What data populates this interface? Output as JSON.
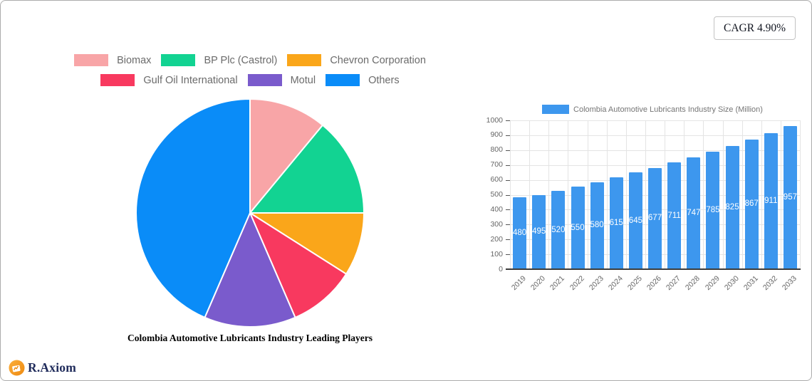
{
  "ui": {
    "cagr_badge": "CAGR 4.90%",
    "brand": {
      "name": "R.Axiom"
    }
  },
  "theme": {
    "accent_orange": "#F0921A",
    "brand_navy": "#1F2B5B",
    "legend_text": "#6B6B6B",
    "axis_text": "#666666",
    "grid_line": "#E4E4E4",
    "axis_line": "#3C3C3C"
  },
  "chart_data": [
    {
      "type": "pie",
      "title": "Colombia Automotive Lubricants Industry Leading Players",
      "labels": [
        "Biomax",
        "BP Plc (Castrol)",
        "Chevron Corporation",
        "Gulf Oil International",
        "Motul",
        "Others"
      ],
      "values_pct": [
        11,
        14,
        9,
        9.5,
        13,
        43.5
      ],
      "colors": [
        "#F8A5A7",
        "#12D392",
        "#FAA61A",
        "#F8395F",
        "#7A5BCC",
        "#0A8CF8"
      ],
      "start_angle_deg": 0,
      "clockwise": true,
      "legend_position": "top",
      "legend_rows": 2
    },
    {
      "type": "bar",
      "categories": [
        "2019",
        "2020",
        "2021",
        "2022",
        "2023",
        "2024",
        "2025",
        "2026",
        "2027",
        "2028",
        "2029",
        "2030",
        "2031",
        "2032",
        "2033"
      ],
      "series": [
        {
          "name": "Colombia Automotive Lubricants Industry Size (Million)",
          "values": [
            480,
            495,
            520,
            550,
            580,
            615,
            645,
            677,
            711,
            747,
            785,
            825,
            867,
            911,
            957
          ]
        }
      ],
      "ylim": [
        0,
        1000
      ],
      "ytick_step": 100,
      "bar_color": "#3D97EE",
      "value_label_color": "#FFFFFF",
      "value_label_position": "inside-center",
      "grid": true,
      "x_label_rotation_deg": -45,
      "legend_position": "top"
    }
  ]
}
